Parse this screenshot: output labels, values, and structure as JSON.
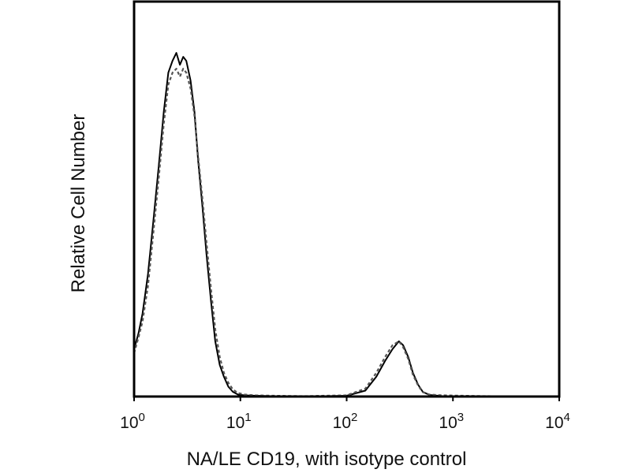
{
  "chart_data": {
    "type": "line",
    "title": "",
    "xlabel": "NA/LE CD19, with isotype control",
    "ylabel": "Relative Cell Number",
    "x_scale": "log",
    "xlim": [
      1,
      10000
    ],
    "ylim": [
      0,
      100
    ],
    "x_ticks": [
      {
        "base": "10",
        "exp": "0"
      },
      {
        "base": "10",
        "exp": "1"
      },
      {
        "base": "10",
        "exp": "2"
      },
      {
        "base": "10",
        "exp": "3"
      },
      {
        "base": "10",
        "exp": "4"
      }
    ],
    "y_ticks": [],
    "grid": false,
    "legend": "none",
    "colors": {
      "axis": "#000000",
      "series_a": "#000000",
      "series_b": "#555555"
    },
    "series": [
      {
        "style": "solid",
        "x": [
          1.0,
          1.1,
          1.2,
          1.35,
          1.5,
          1.7,
          1.9,
          2.1,
          2.3,
          2.5,
          2.7,
          2.9,
          3.1,
          3.4,
          3.7,
          4.0,
          4.4,
          4.8,
          5.3,
          5.8,
          6.4,
          7.0,
          7.7,
          8.5,
          9.5,
          11,
          14,
          20,
          40,
          100,
          150,
          190,
          230,
          270,
          310,
          340,
          380,
          420,
          470,
          520,
          600,
          800,
          2000,
          10000
        ],
        "y": [
          12,
          16,
          21,
          31,
          43,
          58,
          72,
          82,
          85,
          87,
          84,
          86,
          85,
          80,
          72,
          60,
          48,
          36,
          24,
          14,
          8,
          5,
          2.5,
          1.2,
          0.5,
          0.3,
          0.2,
          0.1,
          0.0,
          0.2,
          1.5,
          5,
          9,
          12,
          14,
          13,
          10,
          6,
          3,
          1.2,
          0.4,
          0.1,
          0.0,
          0.0
        ]
      },
      {
        "style": "dashed",
        "x": [
          1.0,
          1.1,
          1.2,
          1.35,
          1.5,
          1.7,
          1.9,
          2.1,
          2.3,
          2.5,
          2.7,
          2.9,
          3.1,
          3.4,
          3.7,
          4.0,
          4.4,
          4.8,
          5.3,
          5.8,
          6.4,
          7.0,
          7.7,
          8.5,
          9.5,
          11,
          14,
          20,
          40,
          100,
          150,
          190,
          230,
          270,
          310,
          340,
          380,
          420,
          470,
          520,
          600,
          800,
          2000,
          10000
        ],
        "y": [
          11,
          15,
          19,
          28,
          40,
          55,
          69,
          79,
          82,
          83,
          81,
          83,
          82,
          78,
          71,
          61,
          50,
          39,
          27,
          17,
          10,
          6,
          3.5,
          1.8,
          0.9,
          0.5,
          0.3,
          0.2,
          0.1,
          0.3,
          2,
          6,
          10,
          13,
          14,
          12.5,
          9.5,
          5.5,
          2.8,
          1.1,
          0.5,
          0.3,
          0.1,
          0.0
        ]
      }
    ]
  }
}
